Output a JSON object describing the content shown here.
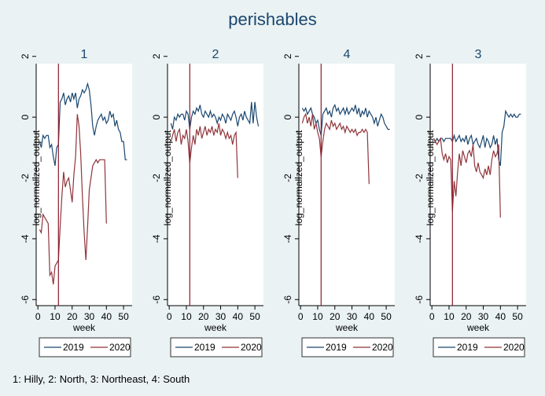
{
  "title": "perishables",
  "note": "1: Hilly, 2: North, 3: Northeast, 4: South",
  "colors": {
    "s2019": "#1a476f",
    "s2020": "#90353b",
    "vline": "#8b1a2b",
    "bg": "#eaf2f3",
    "plot": "#ffffff"
  },
  "chart_data": [
    {
      "type": "line",
      "panel_title": "1",
      "xlabel": "week",
      "ylabel": "log_normalized_output",
      "xlim": [
        -1,
        55
      ],
      "ylim": [
        -6.2,
        2.2
      ],
      "xticks": [
        0,
        10,
        20,
        30,
        40,
        50
      ],
      "yticks": [
        -6,
        -4,
        -2,
        0,
        2
      ],
      "vline": 12,
      "legend_position": "bottom",
      "series": [
        {
          "name": "2019",
          "x": [
            1,
            2,
            3,
            4,
            5,
            6,
            7,
            8,
            9,
            10,
            11,
            12,
            13,
            14,
            15,
            16,
            17,
            18,
            19,
            20,
            21,
            22,
            23,
            24,
            25,
            26,
            27,
            28,
            29,
            30,
            31,
            32,
            33,
            34,
            35,
            36,
            37,
            38,
            39,
            40,
            41,
            42,
            43,
            44,
            45,
            46,
            47,
            48,
            49,
            50,
            51,
            52
          ],
          "y": [
            -0.8,
            -1.0,
            -0.6,
            -0.7,
            -0.6,
            -0.6,
            -1.0,
            -0.9,
            -1.3,
            -1.6,
            -1.0,
            -0.9,
            0.5,
            0.6,
            0.8,
            0.4,
            0.6,
            0.7,
            0.5,
            0.8,
            0.6,
            0.8,
            0.3,
            0.6,
            0.7,
            0.9,
            0.8,
            0.9,
            1.1,
            0.9,
            0.4,
            -0.3,
            -0.6,
            -0.3,
            -0.1,
            0.0,
            0.1,
            -0.1,
            0.0,
            -0.2,
            -0.1,
            0.2,
            0.0,
            0.1,
            -0.3,
            -0.1,
            -0.4,
            -0.5,
            -0.8,
            -0.8,
            -1.4,
            -1.4
          ]
        },
        {
          "name": "2020",
          "x": [
            1,
            2,
            3,
            4,
            5,
            6,
            7,
            8,
            9,
            10,
            11,
            12,
            13,
            14,
            15,
            16,
            17,
            18,
            19,
            20,
            21,
            22,
            23,
            24,
            25,
            26,
            27,
            28,
            29,
            30,
            31,
            32,
            33,
            34,
            35,
            36,
            37,
            38,
            39,
            40
          ],
          "y": [
            -3.7,
            -3.8,
            -3.2,
            -3.3,
            -3.4,
            -3.5,
            -5.2,
            -5.1,
            -5.5,
            -4.9,
            -4.8,
            -4.7,
            -3.6,
            -2.6,
            -1.8,
            -2.3,
            -2.1,
            -2.0,
            -2.4,
            -2.8,
            -1.9,
            -1.3,
            0.1,
            -0.3,
            -1.2,
            -2.6,
            -3.8,
            -4.7,
            -3.6,
            -2.4,
            -2.0,
            -1.6,
            -1.5,
            -1.4,
            -1.5,
            -1.4,
            -1.4,
            -1.4,
            -1.4,
            -3.5
          ]
        }
      ]
    },
    {
      "type": "line",
      "panel_title": "2",
      "xlabel": "week",
      "ylabel": "log_normalized_output",
      "xlim": [
        -1,
        55
      ],
      "ylim": [
        -6.2,
        2.2
      ],
      "xticks": [
        0,
        10,
        20,
        30,
        40,
        50
      ],
      "yticks": [
        -6,
        -4,
        -2,
        0,
        2
      ],
      "vline": 12,
      "legend_position": "bottom",
      "series": [
        {
          "name": "2019",
          "x": [
            1,
            2,
            3,
            4,
            5,
            6,
            7,
            8,
            9,
            10,
            11,
            12,
            13,
            14,
            15,
            16,
            17,
            18,
            19,
            20,
            21,
            22,
            23,
            24,
            25,
            26,
            27,
            28,
            29,
            30,
            31,
            32,
            33,
            34,
            35,
            36,
            37,
            38,
            39,
            40,
            41,
            42,
            43,
            44,
            45,
            46,
            47,
            48,
            49,
            50,
            51,
            52
          ],
          "y": [
            -0.2,
            -0.4,
            0.0,
            -0.1,
            0.1,
            0.0,
            0.1,
            0.1,
            -0.1,
            0.2,
            0.1,
            -0.4,
            0.0,
            0.2,
            0.1,
            0.3,
            0.2,
            0.4,
            0.1,
            0.0,
            0.2,
            0.1,
            0.0,
            0.2,
            0.0,
            0.1,
            0.0,
            -0.2,
            0.0,
            -0.1,
            0.1,
            0.0,
            -0.2,
            0.1,
            0.0,
            -0.1,
            0.1,
            0.2,
            0.0,
            -0.3,
            0.0,
            0.1,
            -0.1,
            0.2,
            0.0,
            -0.1,
            -0.2,
            0.5,
            -0.2,
            0.5,
            0.0,
            -0.3
          ]
        },
        {
          "name": "2020",
          "x": [
            1,
            2,
            3,
            4,
            5,
            6,
            7,
            8,
            9,
            10,
            11,
            12,
            13,
            14,
            15,
            16,
            17,
            18,
            19,
            20,
            21,
            22,
            23,
            24,
            25,
            26,
            27,
            28,
            29,
            30,
            31,
            32,
            33,
            34,
            35,
            36,
            37,
            38,
            39,
            40
          ],
          "y": [
            -0.8,
            -0.6,
            -0.4,
            -0.8,
            -0.5,
            -0.4,
            -0.9,
            -0.6,
            -0.7,
            -0.4,
            -0.8,
            -1.5,
            -1.0,
            -0.6,
            -0.9,
            -0.4,
            -0.6,
            -0.3,
            -0.7,
            -0.5,
            -0.3,
            -0.6,
            -0.4,
            -0.5,
            -0.3,
            -0.6,
            -0.4,
            -0.5,
            -0.2,
            -0.6,
            -0.4,
            -0.5,
            -0.7,
            -0.5,
            -0.7,
            -0.6,
            -0.9,
            -0.6,
            -0.5,
            -2.0
          ]
        }
      ]
    },
    {
      "type": "line",
      "panel_title": "4",
      "xlabel": "week",
      "ylabel": "log_normalized_output",
      "xlim": [
        -1,
        55
      ],
      "ylim": [
        -6.2,
        2.2
      ],
      "xticks": [
        0,
        10,
        20,
        30,
        40,
        50
      ],
      "yticks": [
        -6,
        -4,
        -2,
        0,
        2
      ],
      "vline": 12,
      "legend_position": "bottom",
      "series": [
        {
          "name": "2019",
          "x": [
            1,
            2,
            3,
            4,
            5,
            6,
            7,
            8,
            9,
            10,
            11,
            12,
            13,
            14,
            15,
            16,
            17,
            18,
            19,
            20,
            21,
            22,
            23,
            24,
            25,
            26,
            27,
            28,
            29,
            30,
            31,
            32,
            33,
            34,
            35,
            36,
            37,
            38,
            39,
            40,
            41,
            42,
            43,
            44,
            45,
            46,
            47,
            48,
            49,
            50,
            51,
            52
          ],
          "y": [
            0.3,
            0.2,
            0.3,
            0.1,
            0.2,
            0.3,
            0.1,
            0.0,
            -0.2,
            -0.1,
            -0.4,
            -0.6,
            0.1,
            0.2,
            0.3,
            0.1,
            0.2,
            0.0,
            0.3,
            0.4,
            0.2,
            0.3,
            0.1,
            0.2,
            0.3,
            0.1,
            0.3,
            0.1,
            0.2,
            0.3,
            0.2,
            0.4,
            0.1,
            0.3,
            0.0,
            0.2,
            0.1,
            0.3,
            0.0,
            0.2,
            0.1,
            0.0,
            -0.2,
            0.0,
            -0.3,
            -0.1,
            0.1,
            0.0,
            -0.2,
            -0.3,
            -0.4,
            -0.4
          ]
        },
        {
          "name": "2020",
          "x": [
            1,
            2,
            3,
            4,
            5,
            6,
            7,
            8,
            9,
            10,
            11,
            12,
            13,
            14,
            15,
            16,
            17,
            18,
            19,
            20,
            21,
            22,
            23,
            24,
            25,
            26,
            27,
            28,
            29,
            30,
            31,
            32,
            33,
            34,
            35,
            36,
            37,
            38,
            39,
            40
          ],
          "y": [
            -0.2,
            0.0,
            0.1,
            -0.2,
            0.0,
            -0.3,
            0.1,
            -0.4,
            -0.2,
            -0.5,
            -0.7,
            -1.3,
            -0.8,
            -0.4,
            -0.2,
            -0.3,
            -0.4,
            -0.1,
            -0.3,
            -0.2,
            -0.4,
            -0.3,
            -0.2,
            -0.4,
            -0.3,
            -0.5,
            -0.3,
            -0.4,
            -0.5,
            -0.4,
            -0.5,
            -0.4,
            -0.6,
            -0.5,
            -0.5,
            -0.4,
            -0.5,
            -0.4,
            -0.5,
            -2.2
          ]
        }
      ]
    },
    {
      "type": "line",
      "panel_title": "3",
      "xlabel": "week",
      "ylabel": "log_normalized_output",
      "xlim": [
        -1,
        55
      ],
      "ylim": [
        -6.2,
        2.2
      ],
      "xticks": [
        0,
        10,
        20,
        30,
        40,
        50
      ],
      "yticks": [
        -6,
        -4,
        -2,
        0,
        2
      ],
      "vline": 12,
      "legend_position": "bottom",
      "series": [
        {
          "name": "2019",
          "x": [
            1,
            2,
            3,
            4,
            5,
            6,
            7,
            8,
            9,
            10,
            11,
            12,
            13,
            14,
            15,
            16,
            17,
            18,
            19,
            20,
            21,
            22,
            23,
            24,
            25,
            26,
            27,
            28,
            29,
            30,
            31,
            32,
            33,
            34,
            35,
            36,
            37,
            38,
            39,
            40,
            41,
            42,
            43,
            44,
            45,
            46,
            47,
            48,
            49,
            50,
            51,
            52
          ],
          "y": [
            -0.7,
            -0.8,
            -0.7,
            -0.8,
            -0.7,
            -0.7,
            -0.8,
            -0.7,
            -0.7,
            -0.7,
            -0.7,
            -0.8,
            -0.6,
            -0.8,
            -0.7,
            -0.6,
            -0.8,
            -0.7,
            -0.8,
            -0.6,
            -0.9,
            -0.7,
            -0.6,
            -0.9,
            -0.8,
            -0.7,
            -0.9,
            -1.0,
            -0.8,
            -0.6,
            -1.0,
            -0.7,
            -0.8,
            -1.0,
            -0.9,
            -0.6,
            -0.9,
            -0.7,
            -1.4,
            -1.6,
            -0.5,
            -0.3,
            0.2,
            0.1,
            0.0,
            0.1,
            0.0,
            0.1,
            0.0,
            0.0,
            0.1,
            0.1
          ]
        },
        {
          "name": "2020",
          "x": [
            1,
            2,
            3,
            4,
            5,
            6,
            7,
            8,
            9,
            10,
            11,
            12,
            13,
            14,
            15,
            16,
            17,
            18,
            19,
            20,
            21,
            22,
            23,
            24,
            25,
            26,
            27,
            28,
            29,
            30,
            31,
            32,
            33,
            34,
            35,
            36,
            37,
            38,
            39,
            40
          ],
          "y": [
            -0.7,
            -0.8,
            -0.9,
            -0.8,
            -0.7,
            -1.2,
            -1.4,
            -1.2,
            -1.5,
            -1.3,
            -1.4,
            -3.1,
            -2.1,
            -2.6,
            -1.8,
            -1.2,
            -1.6,
            -1.1,
            -1.3,
            -1.5,
            -1.2,
            -1.1,
            -1.3,
            -0.9,
            -1.6,
            -1.8,
            -1.5,
            -1.8,
            -1.9,
            -2.0,
            -1.7,
            -1.9,
            -1.6,
            -1.9,
            -1.4,
            -1.1,
            -1.3,
            -1.2,
            -0.9,
            -3.3
          ]
        }
      ]
    }
  ]
}
